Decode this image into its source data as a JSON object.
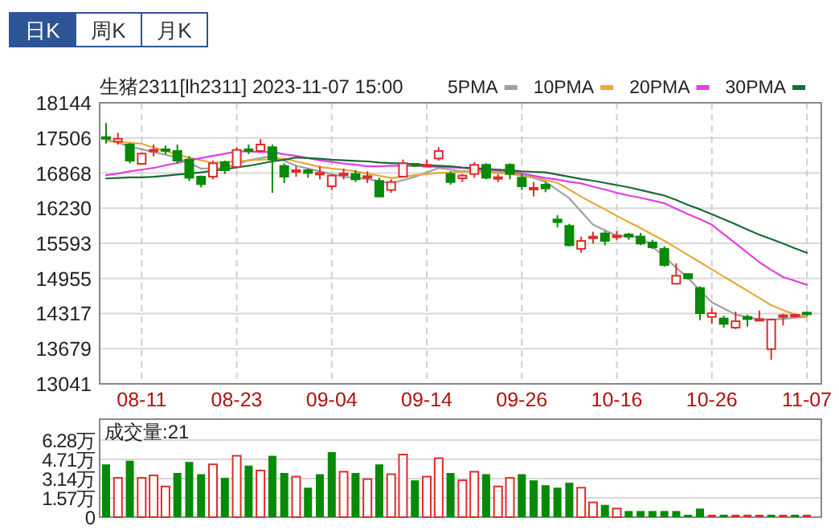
{
  "chart_data": [
    {
      "type": "other",
      "annotations": [
        "日K",
        "周K",
        "月K"
      ]
    },
    {
      "type": "candlestick",
      "title": "生猪2311[lh2311] 2023-11-07 15:00",
      "categories": [
        null,
        null,
        null,
        "08-11",
        null,
        null,
        null,
        null,
        null,
        null,
        null,
        "08-23",
        null,
        null,
        null,
        null,
        null,
        null,
        null,
        "09-04",
        null,
        null,
        null,
        null,
        null,
        null,
        null,
        "09-14",
        null,
        null,
        null,
        null,
        null,
        null,
        null,
        "09-26",
        null,
        null,
        null,
        null,
        null,
        null,
        null,
        "10-16",
        null,
        null,
        null,
        null,
        null,
        null,
        null,
        "10-26",
        null,
        null,
        null,
        null,
        null,
        null,
        null,
        "11-07"
      ],
      "ohlc": [
        [
          17520,
          17775,
          17405,
          17490
        ],
        [
          17440,
          17600,
          17386,
          17490
        ],
        [
          17386,
          17415,
          17046,
          17094
        ],
        [
          17036,
          17240,
          17026,
          17221
        ],
        [
          17270,
          17386,
          17172,
          17289
        ],
        [
          17299,
          17366,
          17211,
          17280
        ],
        [
          17269,
          17386,
          17036,
          17094
        ],
        [
          17114,
          17172,
          16725,
          16783
        ],
        [
          16803,
          16822,
          16608,
          16667
        ],
        [
          16803,
          17094,
          16754,
          17046
        ],
        [
          17065,
          17094,
          16851,
          16919
        ],
        [
          16978,
          17337,
          16949,
          17289
        ],
        [
          17299,
          17386,
          17211,
          17280
        ],
        [
          17269,
          17483,
          17240,
          17386
        ],
        [
          17337,
          17386,
          16511,
          17114
        ],
        [
          16997,
          17046,
          16686,
          16803
        ],
        [
          16890,
          16997,
          16803,
          16919
        ],
        [
          16919,
          16949,
          16783,
          16870
        ],
        [
          16851,
          16997,
          16754,
          16870
        ],
        [
          16628,
          16851,
          16560,
          16822
        ],
        [
          16841,
          16949,
          16754,
          16860
        ],
        [
          16851,
          16919,
          16705,
          16754
        ],
        [
          16793,
          16900,
          16686,
          16812
        ],
        [
          16725,
          16783,
          16433,
          16443
        ],
        [
          16560,
          16754,
          16511,
          16705
        ],
        [
          16803,
          17114,
          16790,
          17046
        ],
        [
          17036,
          17046,
          16978,
          17000
        ],
        [
          16997,
          17114,
          16978,
          17017
        ],
        [
          17133,
          17337,
          17094,
          17269
        ],
        [
          16851,
          16900,
          16657,
          16705
        ],
        [
          16773,
          16851,
          16705,
          16822
        ],
        [
          16851,
          17065,
          16783,
          17017
        ],
        [
          17017,
          17046,
          16754,
          16783
        ],
        [
          16773,
          16851,
          16705,
          16793
        ],
        [
          17017,
          17046,
          16754,
          16851
        ],
        [
          16783,
          16851,
          16560,
          16628
        ],
        [
          16580,
          16705,
          16443,
          16599
        ],
        [
          16657,
          16705,
          16521,
          16589
        ],
        [
          16025,
          16103,
          15880,
          15977
        ],
        [
          15908,
          15947,
          15539,
          15558
        ],
        [
          15491,
          15714,
          15422,
          15636
        ],
        [
          15685,
          15801,
          15588,
          15714
        ],
        [
          15772,
          15811,
          15558,
          15636
        ],
        [
          15704,
          15811,
          15656,
          15733
        ],
        [
          15753,
          15782,
          15656,
          15714
        ],
        [
          15714,
          15782,
          15558,
          15588
        ],
        [
          15607,
          15656,
          15491,
          15520
        ],
        [
          15491,
          15539,
          15170,
          15199
        ],
        [
          14859,
          15229,
          14859,
          15004
        ],
        [
          15034,
          15053,
          14936,
          14956
        ],
        [
          14781,
          14810,
          14198,
          14324
        ],
        [
          14256,
          14421,
          14130,
          14324
        ],
        [
          14227,
          14276,
          14062,
          14130
        ],
        [
          14062,
          14353,
          14033,
          14178
        ],
        [
          14256,
          14295,
          14081,
          14217
        ],
        [
          14198,
          14373,
          14198,
          14217
        ],
        [
          13673,
          14227,
          13478,
          14207
        ],
        [
          14266,
          14314,
          14101,
          14285
        ],
        [
          14276,
          14314,
          14246,
          14295
        ],
        [
          14334,
          14353,
          14275,
          14314
        ]
      ],
      "colors": [
        "#078a07",
        "#e02b2b",
        "#078a07",
        "#e02b2b",
        "#e02b2b",
        "#078a07",
        "#078a07",
        "#078a07",
        "#078a07",
        "#e02b2b",
        "#078a07",
        "#e02b2b",
        "#078a07",
        "#e02b2b",
        "#078a07",
        "#078a07",
        "#e02b2b",
        "#078a07",
        "#e02b2b",
        "#e02b2b",
        "#e02b2b",
        "#078a07",
        "#e02b2b",
        "#078a07",
        "#e02b2b",
        "#e02b2b",
        "#078a07",
        "#e02b2b",
        "#e02b2b",
        "#078a07",
        "#e02b2b",
        "#e02b2b",
        "#078a07",
        "#e02b2b",
        "#078a07",
        "#078a07",
        "#e02b2b",
        "#078a07",
        "#078a07",
        "#078a07",
        "#e02b2b",
        "#e02b2b",
        "#078a07",
        "#e02b2b",
        "#078a07",
        "#078a07",
        "#078a07",
        "#078a07",
        "#e02b2b",
        "#078a07",
        "#078a07",
        "#e02b2b",
        "#078a07",
        "#e02b2b",
        "#078a07",
        "#e02b2b",
        "#e02b2b",
        "#e02b2b",
        "#e02b2b",
        "#078a07"
      ],
      "series": [
        {
          "name": "5PMA",
          "type": "line",
          "color": "#a0a0a0",
          "values": [
            17480,
            17420,
            17350,
            17300,
            17250,
            17200,
            17150,
            17050,
            16950,
            16950,
            16960,
            17030,
            17100,
            17140,
            17180,
            17090,
            17000,
            16950,
            16900,
            16850,
            16800,
            16780,
            16760,
            16720,
            16680,
            16740,
            16800,
            16880,
            16960,
            16930,
            16900,
            16900,
            16900,
            16890,
            16880,
            16830,
            16780,
            16710,
            16560,
            16410,
            16170,
            15930,
            15830,
            15730,
            15720,
            15710,
            15530,
            15350,
            15150,
            14960,
            14740,
            14520,
            14410,
            14300,
            14250,
            14210,
            14210,
            14220,
            14240,
            14260
          ]
        },
        {
          "name": "10PMA",
          "type": "line",
          "color": "#e8a838",
          "values": [
            17450,
            17430,
            17420,
            17400,
            17330,
            17270,
            17200,
            17150,
            17100,
            17050,
            17070,
            17080,
            17100,
            17110,
            17120,
            17130,
            17080,
            17030,
            16980,
            16950,
            16930,
            16900,
            16860,
            16820,
            16780,
            16800,
            16830,
            16850,
            16870,
            16880,
            16900,
            16890,
            16880,
            16870,
            16850,
            16820,
            16800,
            16740,
            16690,
            16570,
            16440,
            16320,
            16210,
            16090,
            15980,
            15870,
            15750,
            15640,
            15510,
            15380,
            15250,
            15120,
            14990,
            14860,
            14730,
            14600,
            14470,
            14380,
            14300,
            14260
          ]
        },
        {
          "name": "20PMA",
          "type": "line",
          "color": "#e040e0",
          "values": [
            16830,
            16860,
            16900,
            16930,
            16960,
            17010,
            17050,
            17100,
            17140,
            17180,
            17220,
            17260,
            17260,
            17250,
            17250,
            17210,
            17180,
            17140,
            17100,
            17070,
            17040,
            17020,
            16990,
            16990,
            17000,
            17000,
            17000,
            16990,
            16980,
            16970,
            16960,
            16940,
            16930,
            16920,
            16900,
            16860,
            16820,
            16780,
            16750,
            16710,
            16680,
            16620,
            16570,
            16510,
            16460,
            16420,
            16370,
            16320,
            16220,
            16120,
            16030,
            15930,
            15760,
            15590,
            15420,
            15250,
            15110,
            14980,
            14910,
            14840
          ]
        },
        {
          "name": "30PMA",
          "type": "line",
          "color": "#1a6a3a",
          "values": [
            16770,
            16780,
            16790,
            16790,
            16800,
            16820,
            16840,
            16860,
            16880,
            16910,
            16940,
            16970,
            17000,
            17040,
            17080,
            17110,
            17150,
            17140,
            17130,
            17110,
            17100,
            17090,
            17080,
            17060,
            17050,
            17040,
            17030,
            17010,
            17000,
            16990,
            16970,
            16960,
            16940,
            16930,
            16920,
            16900,
            16890,
            16880,
            16840,
            16800,
            16760,
            16730,
            16690,
            16650,
            16610,
            16560,
            16510,
            16460,
            16380,
            16290,
            16210,
            16120,
            16030,
            15940,
            15840,
            15750,
            15670,
            15590,
            15500,
            15420
          ]
        }
      ],
      "ylim": [
        13041,
        18144
      ],
      "yticks": [
        13041,
        13679,
        14317,
        14955,
        15593,
        16230,
        16868,
        17506,
        18144
      ],
      "grid": true,
      "legend": "top right"
    },
    {
      "type": "bar",
      "annotations": [
        "成交量:21"
      ],
      "categories": [
        null,
        null,
        null,
        null,
        null,
        null,
        null,
        null,
        null,
        null,
        null,
        null,
        null,
        null,
        null,
        null,
        null,
        null,
        null,
        null,
        null,
        null,
        null,
        null,
        null,
        null,
        null,
        null,
        null,
        null,
        null,
        null,
        null,
        null,
        null,
        null,
        null,
        null,
        null,
        null,
        null,
        null,
        null,
        null,
        null,
        null,
        null,
        null,
        null,
        null,
        null,
        null,
        null,
        null,
        null,
        null,
        null,
        null,
        null,
        null
      ],
      "values": [
        4.3,
        3.2,
        4.6,
        3.2,
        3.4,
        2.5,
        3.6,
        4.5,
        3.5,
        4.3,
        3.2,
        5.0,
        4.2,
        3.8,
        5.0,
        3.6,
        3.3,
        2.4,
        3.5,
        5.3,
        3.7,
        3.6,
        3.1,
        4.3,
        3.5,
        5.1,
        3.0,
        3.3,
        4.8,
        3.6,
        3.0,
        3.7,
        3.5,
        2.5,
        3.2,
        3.5,
        3.0,
        2.6,
        2.4,
        2.8,
        2.4,
        1.2,
        1.0,
        0.7,
        0.5,
        0.5,
        0.5,
        0.5,
        0.5,
        0.1,
        0.7,
        0.2,
        0.2,
        0.1,
        0.2,
        0.05,
        0.02,
        0.02,
        0.02,
        0.0021
      ],
      "colors": [
        "#078a07",
        "#e02b2b",
        "#078a07",
        "#e02b2b",
        "#e02b2b",
        "#e02b2b",
        "#078a07",
        "#078a07",
        "#078a07",
        "#e02b2b",
        "#078a07",
        "#e02b2b",
        "#078a07",
        "#e02b2b",
        "#078a07",
        "#078a07",
        "#e02b2b",
        "#078a07",
        "#078a07",
        "#078a07",
        "#e02b2b",
        "#078a07",
        "#e02b2b",
        "#078a07",
        "#e02b2b",
        "#e02b2b",
        "#078a07",
        "#e02b2b",
        "#e02b2b",
        "#078a07",
        "#e02b2b",
        "#e02b2b",
        "#078a07",
        "#e02b2b",
        "#e02b2b",
        "#078a07",
        "#078a07",
        "#078a07",
        "#078a07",
        "#078a07",
        "#e02b2b",
        "#e02b2b",
        "#078a07",
        "#e02b2b",
        "#078a07",
        "#078a07",
        "#078a07",
        "#078a07",
        "#078a07",
        "#078a07",
        "#078a07",
        "#e02b2b",
        "#078a07",
        "#e02b2b",
        "#e02b2b",
        "#e02b2b",
        "#078a07",
        "#e02b2b",
        "#078a07",
        "#e02b2b"
      ],
      "ylim": [
        0,
        6.28
      ],
      "yticks": [
        0,
        {
          "value": 1.57,
          "label": "1.57万"
        },
        {
          "value": 3.14,
          "label": "3.14万"
        },
        {
          "value": 4.71,
          "label": "4.71万"
        },
        {
          "value": 6.28,
          "label": "6.28万"
        }
      ],
      "grid": "y"
    }
  ]
}
